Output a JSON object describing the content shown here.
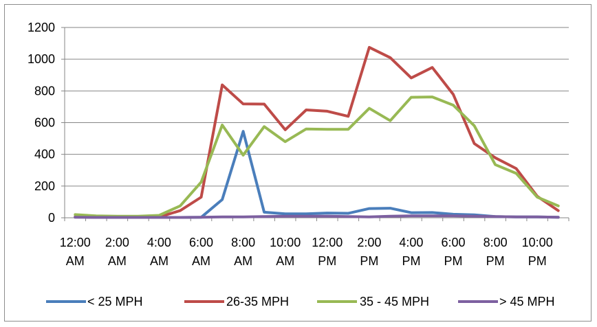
{
  "chart_data": {
    "type": "line",
    "title": "",
    "xlabel": "",
    "ylabel": "",
    "ylim": [
      0,
      1200
    ],
    "yticks": [
      "0",
      "200",
      "400",
      "600",
      "800",
      "1000",
      "1200"
    ],
    "grid": true,
    "legend_position": "bottom",
    "x_tick_labels": [
      [
        "12:00",
        "AM"
      ],
      [
        "2:00",
        "AM"
      ],
      [
        "4:00",
        "AM"
      ],
      [
        "6:00",
        "AM"
      ],
      [
        "8:00",
        "AM"
      ],
      [
        "10:00",
        "AM"
      ],
      [
        "12:00",
        "PM"
      ],
      [
        "2:00",
        "PM"
      ],
      [
        "4:00",
        "PM"
      ],
      [
        "6:00",
        "PM"
      ],
      [
        "8:00",
        "PM"
      ],
      [
        "10:00",
        "PM"
      ]
    ],
    "x": [
      "12:00 AM",
      "1:00 AM",
      "2:00 AM",
      "3:00 AM",
      "4:00 AM",
      "5:00 AM",
      "6:00 AM",
      "7:00 AM",
      "8:00 AM",
      "9:00 AM",
      "10:00 AM",
      "11:00 AM",
      "12:00 PM",
      "1:00 PM",
      "2:00 PM",
      "3:00 PM",
      "4:00 PM",
      "5:00 PM",
      "6:00 PM",
      "7:00 PM",
      "8:00 PM",
      "9:00 PM",
      "10:00 PM",
      "11:00 PM"
    ],
    "series": [
      {
        "name": "< 25 MPH",
        "color": "#4a7ebb",
        "values": [
          5,
          3,
          2,
          2,
          2,
          2,
          3,
          115,
          545,
          35,
          25,
          25,
          30,
          28,
          58,
          60,
          32,
          33,
          22,
          18,
          8,
          5,
          5,
          3
        ]
      },
      {
        "name": "26-35 MPH",
        "color": "#be4b48",
        "values": [
          5,
          3,
          2,
          2,
          5,
          45,
          130,
          838,
          718,
          717,
          555,
          680,
          672,
          640,
          1075,
          1010,
          882,
          948,
          778,
          468,
          378,
          310,
          135,
          45
        ]
      },
      {
        "name": "35 - 45 MPH",
        "color": "#98b954",
        "values": [
          20,
          12,
          10,
          10,
          15,
          75,
          225,
          585,
          395,
          575,
          480,
          560,
          558,
          558,
          690,
          612,
          760,
          762,
          710,
          580,
          335,
          280,
          130,
          75
        ]
      },
      {
        "name": "> 45 MPH",
        "color": "#7d60a0",
        "values": [
          3,
          2,
          2,
          2,
          2,
          2,
          3,
          5,
          5,
          8,
          10,
          10,
          10,
          8,
          5,
          10,
          12,
          12,
          12,
          10,
          8,
          5,
          5,
          3
        ]
      }
    ]
  }
}
